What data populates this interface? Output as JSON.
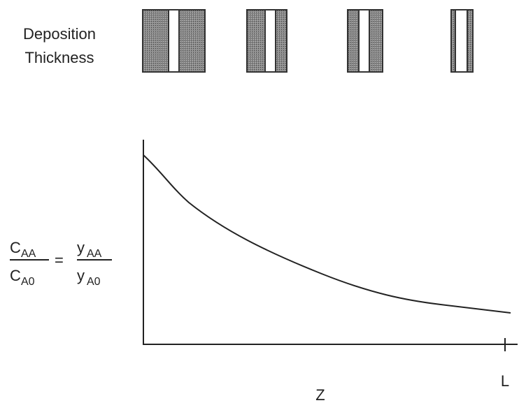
{
  "deposition_label": {
    "line1": "Deposition",
    "line2": "Thickness"
  },
  "y_label": {
    "left": {
      "numerator": {
        "base": "C",
        "sub": "AA"
      },
      "denominator": {
        "base": "C",
        "sub": "A0"
      }
    },
    "equals": "=",
    "right": {
      "numerator": {
        "base": "y",
        "sub": "AA"
      },
      "denominator": {
        "base": "y",
        "sub": "A0"
      }
    }
  },
  "x_label": "Z",
  "x_tick": "L"
}
